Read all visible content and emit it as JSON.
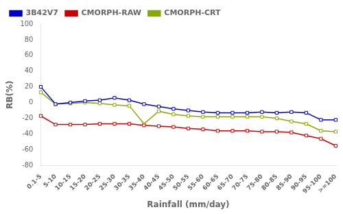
{
  "chart_data": {
    "type": "line",
    "xlabel": "Rainfall (mm/day)",
    "ylabel": "RB(%)",
    "categories": [
      "0.1-5",
      "5-10",
      "10-15",
      "15-20",
      "20-25",
      "25-30",
      "30-35",
      "35-40",
      "40-45",
      "45-50",
      "50-55",
      "55-60",
      "60-65",
      "65-70",
      "70-75",
      "75-80",
      "80-85",
      "85-90",
      "90-95",
      "95-100",
      ">=100"
    ],
    "series": [
      {
        "name": "3B42V7",
        "color": "#0000cc",
        "values": [
          20,
          -2,
          0,
          2,
          3,
          6,
          3,
          -2,
          -5,
          -8,
          -10,
          -12,
          -13,
          -13,
          -13,
          -12,
          -13,
          -12,
          -13,
          -22,
          -22
        ]
      },
      {
        "name": "CMORPH-RAW",
        "color": "#cc0000",
        "values": [
          -17,
          -28,
          -28,
          -28,
          -27,
          -27,
          -27,
          -29,
          -30,
          -31,
          -33,
          -34,
          -36,
          -36,
          -36,
          -37,
          -37,
          -38,
          -42,
          -46,
          -55
        ]
      },
      {
        "name": "CMORPH-CRT",
        "color": "#88aa00",
        "values": [
          13,
          -2,
          -1,
          0,
          -1,
          -3,
          -4,
          -27,
          -11,
          -15,
          -17,
          -18,
          -18,
          -18,
          -18,
          -18,
          -20,
          -24,
          -27,
          -36,
          -37
        ]
      }
    ],
    "marker": "square",
    "ylim": [
      -80,
      100
    ],
    "yticks": [
      -80,
      -60,
      -40,
      -20,
      0,
      20,
      40,
      60,
      80,
      100
    ],
    "grid": false,
    "legend": "upper left"
  }
}
